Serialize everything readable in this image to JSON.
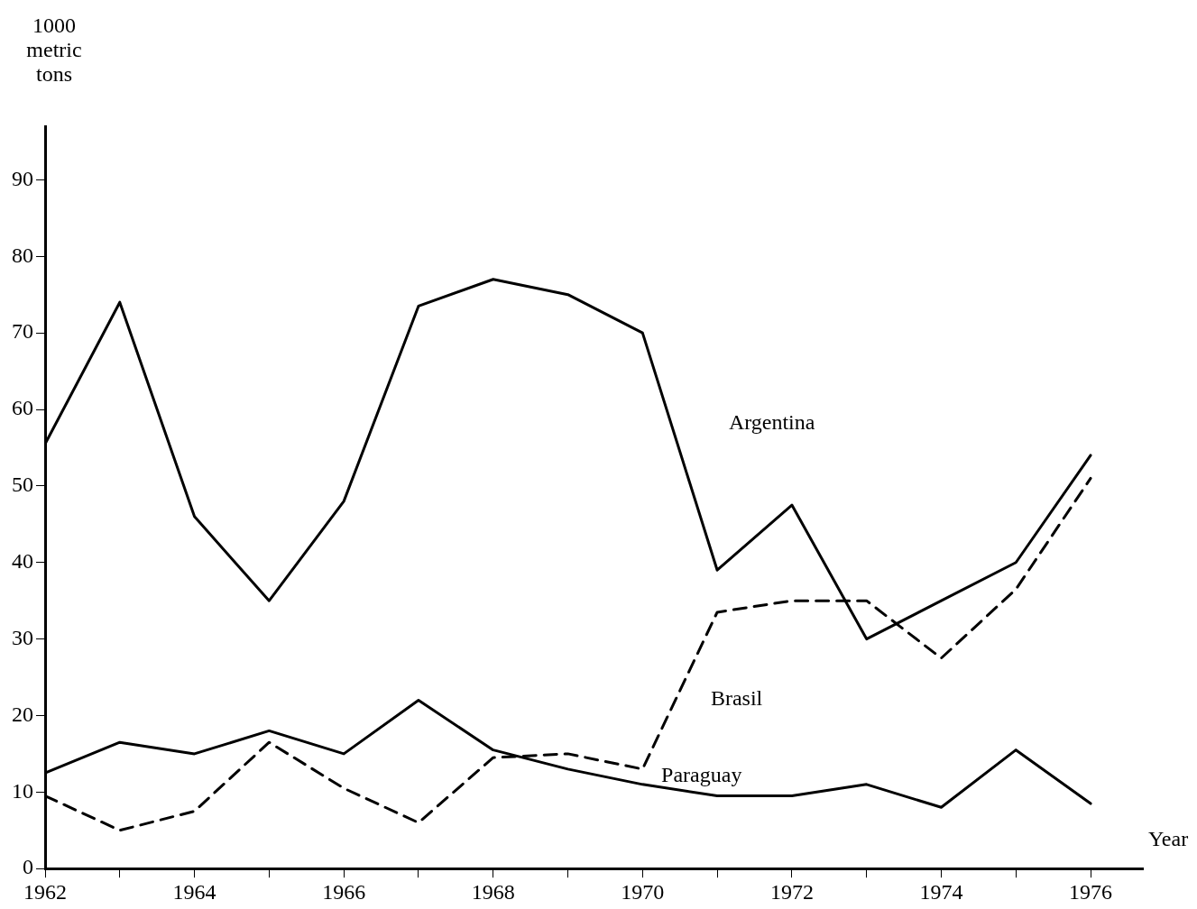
{
  "chart_data": {
    "type": "line",
    "ylabel": "1000 metric tons",
    "xlabel": "Year",
    "x": [
      1962,
      1963,
      1964,
      1965,
      1966,
      1967,
      1968,
      1969,
      1970,
      1971,
      1972,
      1973,
      1974,
      1975,
      1976
    ],
    "xlim": [
      1962,
      1976.7
    ],
    "xticks": [
      1962,
      {
        "value": 1963,
        "label": null
      },
      1964,
      {
        "value": 1965,
        "label": null
      },
      1966,
      {
        "value": 1967,
        "label": null
      },
      1968,
      {
        "value": 1969,
        "label": null
      },
      1970,
      {
        "value": 1971,
        "label": null
      },
      1972,
      {
        "value": 1973,
        "label": null
      },
      1974,
      {
        "value": 1975,
        "label": null
      },
      1976
    ],
    "ylim": [
      0,
      97
    ],
    "yticks": [
      0,
      10,
      20,
      30,
      40,
      50,
      60,
      70,
      80,
      90
    ],
    "grid": false,
    "legend": false,
    "marker": "none",
    "series": [
      {
        "name": "Argentina",
        "color": "#000000",
        "line_style": "solid",
        "values": [
          55.5,
          74,
          46,
          35,
          48,
          73.5,
          77,
          75,
          70,
          39,
          47.5,
          30,
          35,
          40,
          54
        ]
      },
      {
        "name": "Brasil",
        "color": "#000000",
        "line_style": "dashed",
        "values": [
          9.5,
          5,
          7.5,
          16.5,
          10.5,
          6,
          14.5,
          15,
          13,
          33.5,
          35,
          35,
          27.5,
          36.5,
          51
        ]
      },
      {
        "name": "Paraguay",
        "color": "#000000",
        "line_style": "solid",
        "values": [
          12.5,
          16.5,
          15,
          18,
          15,
          22,
          15.5,
          13,
          11,
          9.5,
          9.5,
          11,
          8,
          15.5,
          8.5
        ]
      }
    ]
  }
}
